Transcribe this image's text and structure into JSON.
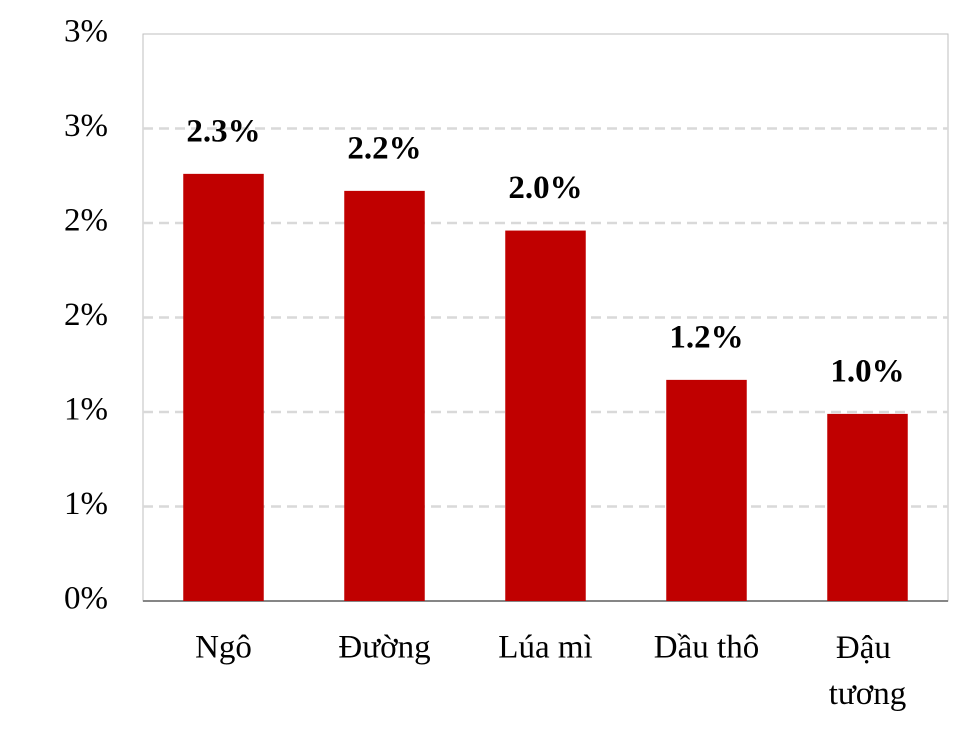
{
  "chart_data": {
    "type": "bar",
    "categories": [
      "Ngô",
      "Đường",
      "Lúa mì",
      "Dầu thô",
      "Đậu tương"
    ],
    "values": [
      2.26,
      2.17,
      1.96,
      1.17,
      0.99
    ],
    "value_labels": [
      "2.3%",
      "2.2%",
      "2.0%",
      "1.2%",
      "1.0%"
    ],
    "color": "#c00000",
    "ylim": [
      0,
      3
    ],
    "yticks": [
      {
        "value": 0,
        "label": "0%"
      },
      {
        "value": 0.5,
        "label": "1%"
      },
      {
        "value": 1,
        "label": "1%"
      },
      {
        "value": 1.5,
        "label": "2%"
      },
      {
        "value": 2,
        "label": "2%"
      },
      {
        "value": 2.5,
        "label": "3%"
      },
      {
        "value": 3,
        "label": "3%"
      }
    ],
    "grid": true
  }
}
